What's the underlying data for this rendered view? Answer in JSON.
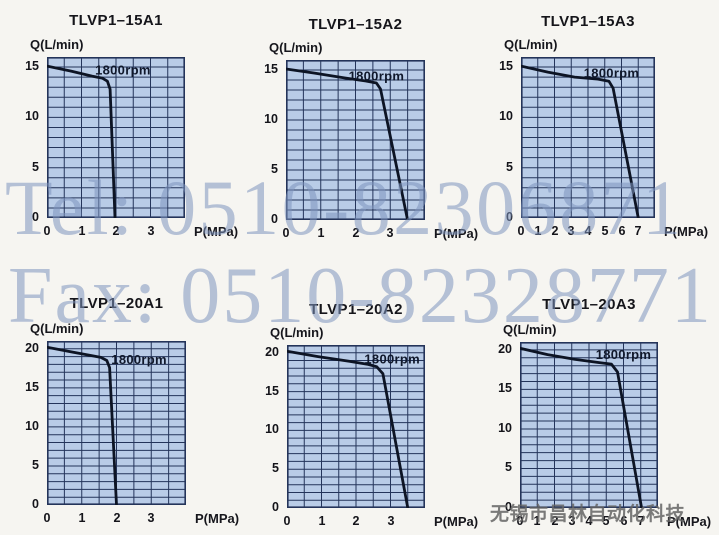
{
  "shared": {
    "y_axis_label": "Q(L/min)",
    "x_axis_label": "P(MPa)",
    "colors": {
      "page_bg": "#f6f5f1",
      "plot_bg": "#b9cce7",
      "grid": "#24345a",
      "curve": "#0d1424",
      "text": "#15151a",
      "watermark_blue": "#7d94be",
      "watermark_gray": "#646464"
    }
  },
  "watermarks": {
    "tel": "Tel: 0510-82306871",
    "fax": "Fax: 0510-82328771",
    "company": "无锡市昌林自动化科技"
  },
  "chart_data": [
    {
      "type": "line",
      "title": "TLVP1–15A1",
      "xlabel": "P(MPa)",
      "ylabel": "Q(L/min)",
      "series_label": "1800rpm",
      "x_range": [
        0,
        4
      ],
      "y_range": [
        0,
        16
      ],
      "x_grid_step": 0.5,
      "y_grid_step": 1,
      "x_ticks": [
        0,
        1,
        2,
        3
      ],
      "y_ticks": [
        0,
        5,
        10,
        15
      ],
      "rpm_label_pos": [
        2.2,
        14.7
      ],
      "curve": [
        [
          0,
          15.1
        ],
        [
          0.7,
          14.6
        ],
        [
          1.3,
          14.1
        ],
        [
          1.6,
          13.9
        ],
        [
          1.75,
          13.6
        ],
        [
          1.83,
          12.8
        ],
        [
          1.97,
          0
        ]
      ]
    },
    {
      "type": "line",
      "title": "TLVP1–15A2",
      "xlabel": "P(MPa)",
      "ylabel": "Q(L/min)",
      "series_label": "1800rpm",
      "x_range": [
        0,
        4
      ],
      "y_range": [
        0,
        16
      ],
      "x_grid_step": 0.5,
      "y_grid_step": 1,
      "x_ticks": [
        0,
        1,
        2,
        3
      ],
      "y_ticks": [
        0,
        5,
        10,
        15
      ],
      "rpm_label_pos": [
        2.6,
        14.4
      ],
      "curve": [
        [
          0,
          15.1
        ],
        [
          0.8,
          14.7
        ],
        [
          1.7,
          14.2
        ],
        [
          2.3,
          13.9
        ],
        [
          2.6,
          13.7
        ],
        [
          2.72,
          13.1
        ],
        [
          3.5,
          0
        ]
      ]
    },
    {
      "type": "line",
      "title": "TLVP1–15A3",
      "xlabel": "P(MPa)",
      "ylabel": "Q(L/min)",
      "series_label": "1800rpm",
      "x_range": [
        0,
        8
      ],
      "y_range": [
        0,
        16
      ],
      "x_grid_step": 1,
      "y_grid_step": 1,
      "x_ticks": [
        0,
        1,
        2,
        3,
        4,
        5,
        6,
        7
      ],
      "y_ticks": [
        0,
        5,
        10,
        15
      ],
      "rpm_label_pos": [
        5.4,
        14.4
      ],
      "curve": [
        [
          0,
          15.1
        ],
        [
          1.6,
          14.5
        ],
        [
          3.2,
          14.0
        ],
        [
          4.6,
          13.8
        ],
        [
          5.25,
          13.6
        ],
        [
          5.5,
          12.9
        ],
        [
          7.0,
          0
        ]
      ]
    },
    {
      "type": "line",
      "title": "TLVP1–20A1",
      "xlabel": "P(MPa)",
      "ylabel": "Q(L/min)",
      "series_label": "1800rpm",
      "x_range": [
        0,
        4
      ],
      "y_range": [
        0,
        21
      ],
      "x_grid_step": 0.5,
      "y_grid_step": 1,
      "x_ticks": [
        0,
        1,
        2,
        3
      ],
      "y_ticks": [
        0,
        5,
        10,
        15,
        20
      ],
      "rpm_label_pos": [
        2.65,
        18.6
      ],
      "curve": [
        [
          0,
          20.2
        ],
        [
          0.7,
          19.6
        ],
        [
          1.3,
          19.1
        ],
        [
          1.55,
          18.9
        ],
        [
          1.72,
          18.5
        ],
        [
          1.8,
          17.6
        ],
        [
          2.0,
          0
        ]
      ]
    },
    {
      "type": "line",
      "title": "TLVP1–20A2",
      "xlabel": "P(MPa)",
      "ylabel": "Q(L/min)",
      "series_label": "1800rpm",
      "x_range": [
        0,
        4
      ],
      "y_range": [
        0,
        21
      ],
      "x_grid_step": 0.5,
      "y_grid_step": 1,
      "x_ticks": [
        0,
        1,
        2,
        3
      ],
      "y_ticks": [
        0,
        5,
        10,
        15,
        20
      ],
      "rpm_label_pos": [
        3.05,
        19.2
      ],
      "curve": [
        [
          0,
          20.2
        ],
        [
          0.9,
          19.5
        ],
        [
          1.8,
          18.9
        ],
        [
          2.35,
          18.5
        ],
        [
          2.6,
          18.2
        ],
        [
          2.78,
          17.3
        ],
        [
          3.5,
          0
        ]
      ]
    },
    {
      "type": "line",
      "title": "TLVP1–20A3",
      "xlabel": "P(MPa)",
      "ylabel": "Q(L/min)",
      "series_label": "1800rpm",
      "x_range": [
        0,
        8
      ],
      "y_range": [
        0,
        21
      ],
      "x_grid_step": 1,
      "y_grid_step": 1,
      "x_ticks": [
        0,
        1,
        2,
        3,
        4,
        5,
        6,
        7
      ],
      "y_ticks": [
        0,
        5,
        10,
        15,
        20
      ],
      "rpm_label_pos": [
        6.0,
        19.4
      ],
      "curve": [
        [
          0,
          20.2
        ],
        [
          1.6,
          19.4
        ],
        [
          3.2,
          18.8
        ],
        [
          4.6,
          18.4
        ],
        [
          5.3,
          18.2
        ],
        [
          5.65,
          17.2
        ],
        [
          7.05,
          0
        ]
      ]
    }
  ]
}
